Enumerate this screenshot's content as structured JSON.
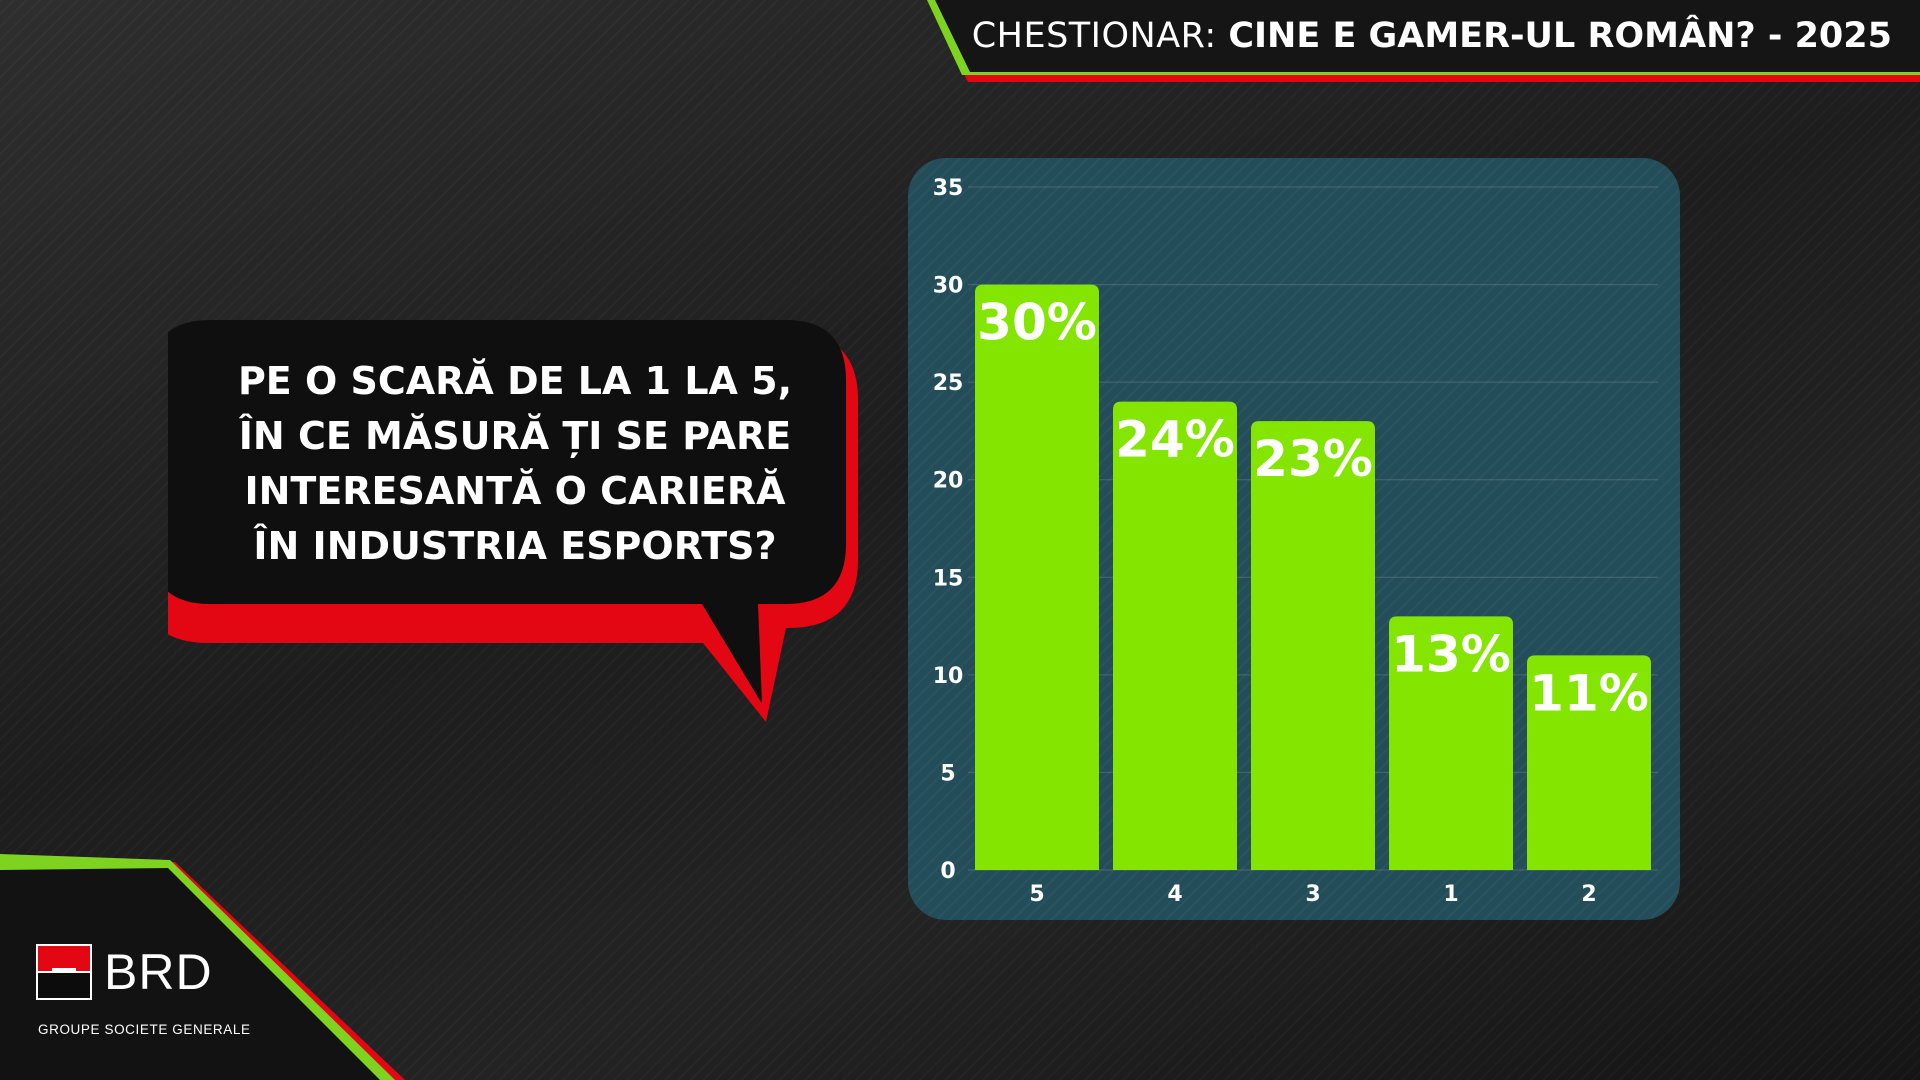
{
  "header": {
    "title_light": "CHESTIONAR: ",
    "title_bold": "CINE E GAMER-UL ROMÂN? - 2025"
  },
  "question": {
    "text": "PE O SCARĂ DE LA 1 LA 5,\nÎN CE MĂSURĂ ȚI SE PARE\nINTERESANTĂ O CARIERĂ\nÎN INDUSTRIA ESPORTS?"
  },
  "logo": {
    "name": "BRD",
    "tagline": "GROUPE SOCIETE GENERALE"
  },
  "colors": {
    "bar": "#84e600",
    "accent_green": "#7ed321",
    "accent_red": "#e30613",
    "panel": "#244d5a",
    "label": "#ffffff"
  },
  "chart_data": {
    "type": "bar",
    "categories": [
      "5",
      "4",
      "3",
      "1",
      "2"
    ],
    "values": [
      30,
      24,
      23,
      13,
      11
    ],
    "data_labels": [
      "30%",
      "24%",
      "23%",
      "13%",
      "11%"
    ],
    "yticks": [
      "0",
      "5",
      "10",
      "15",
      "20",
      "25",
      "30",
      "35"
    ],
    "ylim": [
      0,
      35
    ],
    "grid": true,
    "legend": "none",
    "title": "",
    "xlabel": "",
    "ylabel": ""
  }
}
